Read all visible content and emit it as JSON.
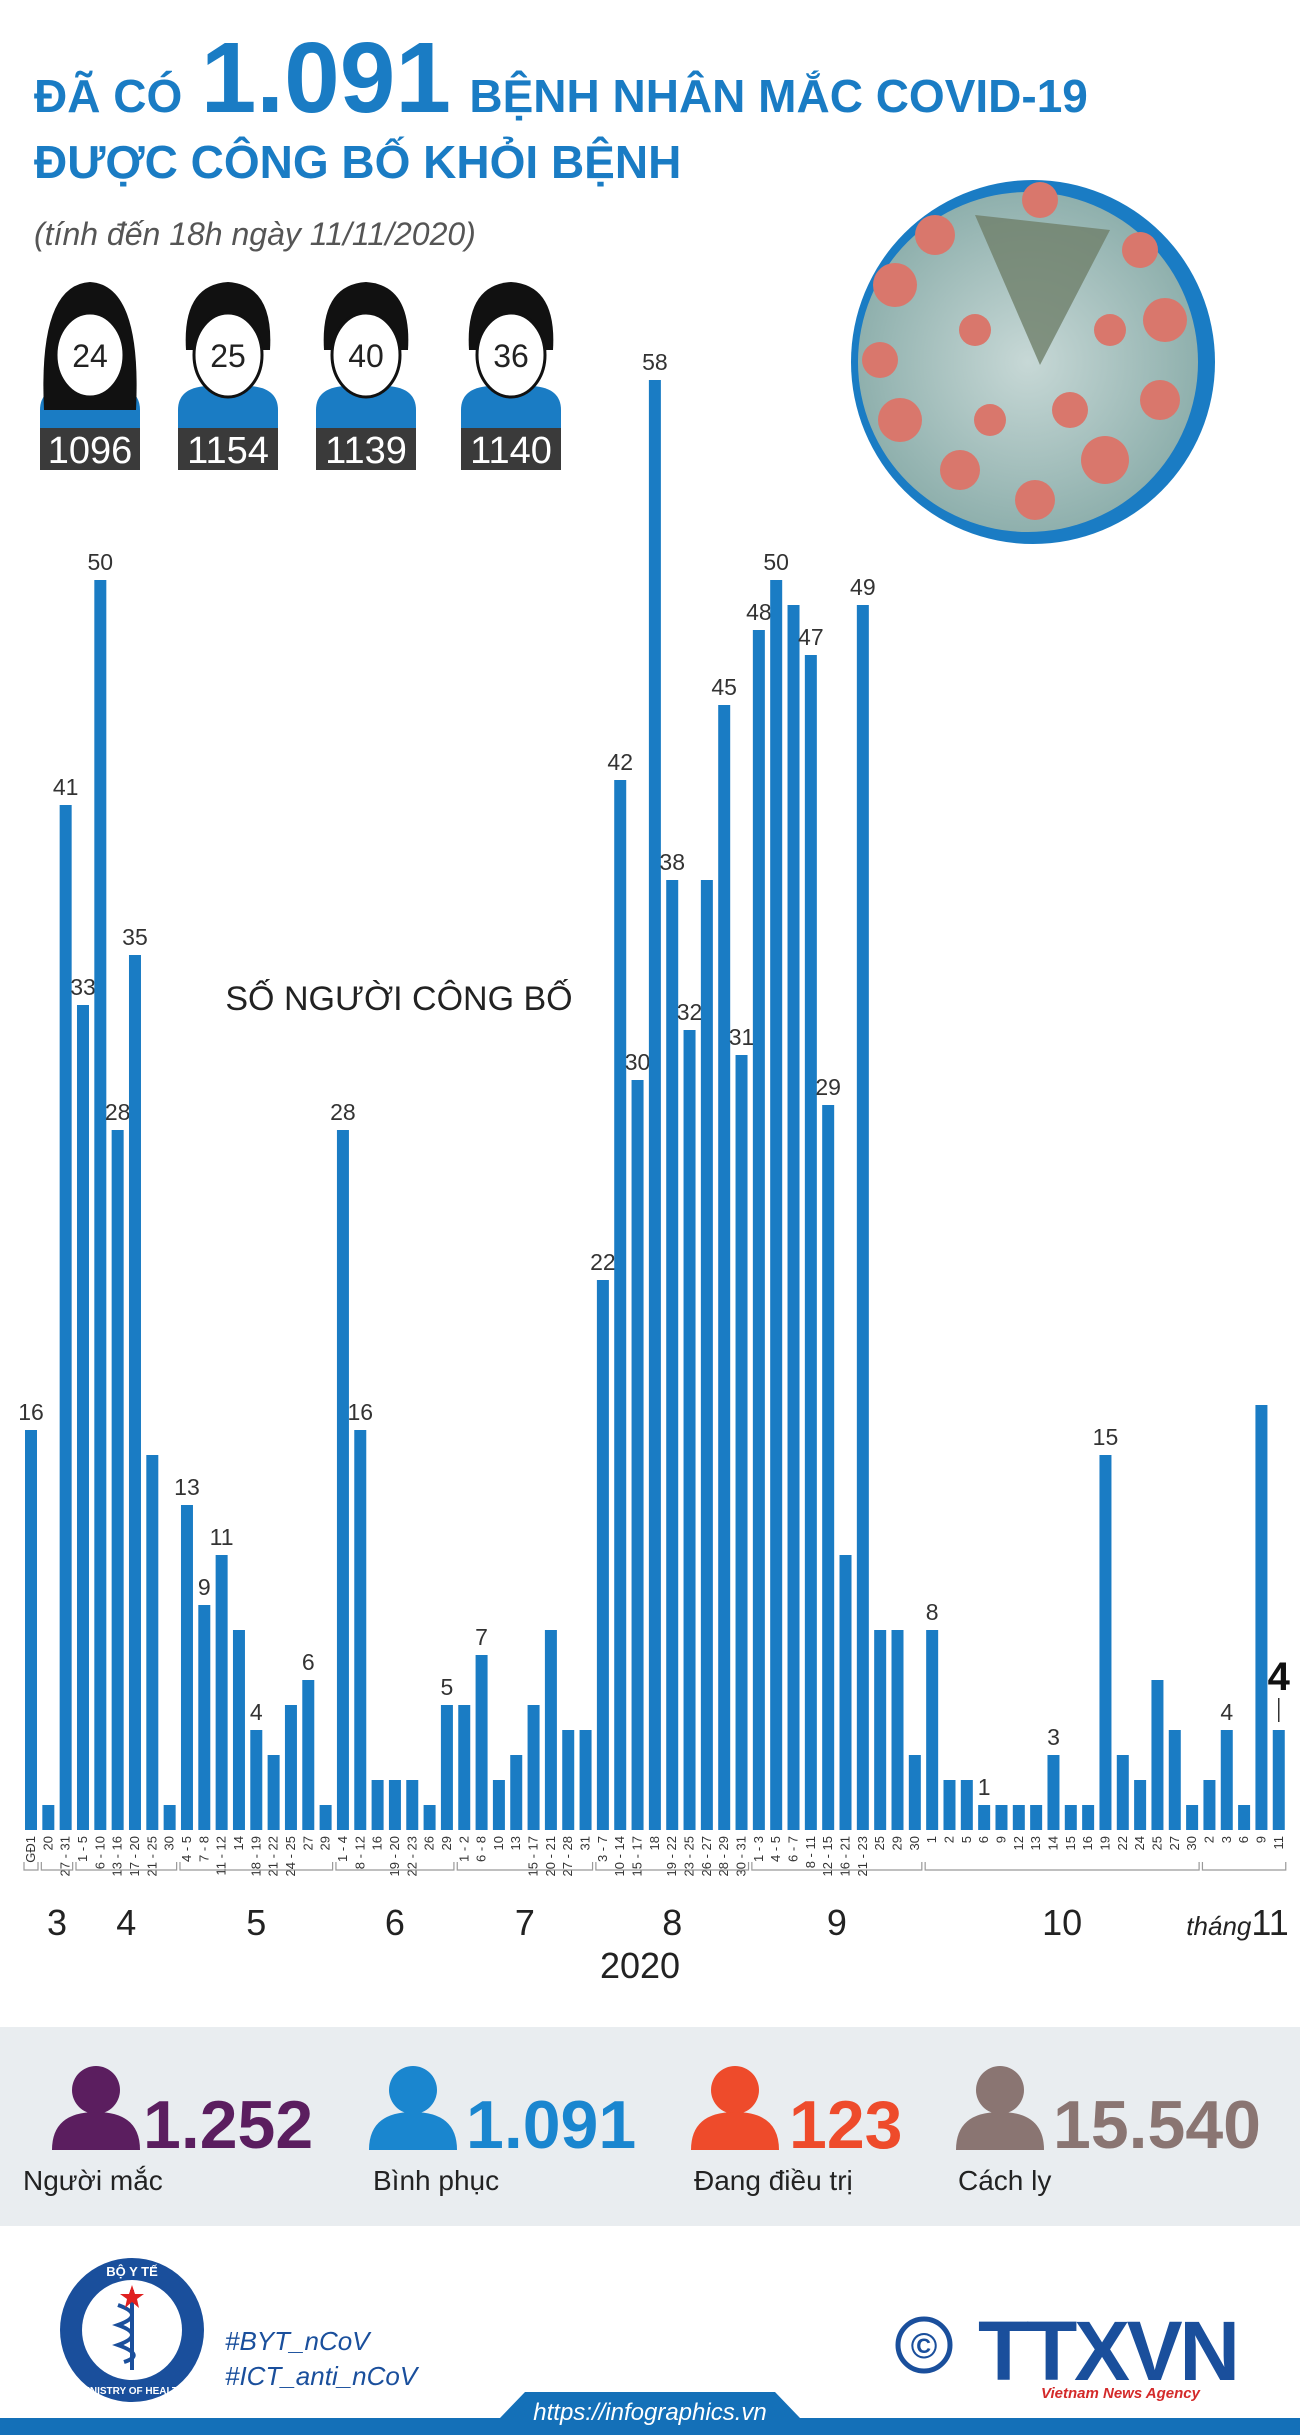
{
  "header": {
    "title_prefix": "ĐÃ CÓ",
    "title_number": "1.091",
    "title_suffix": "BỆNH NHÂN MẮC COVID-19",
    "title_line2": "ĐƯỢC CÔNG BỐ KHỎI BỆNH",
    "subtitle": "(tính đến 18h ngày 11/11/2020)"
  },
  "patients": [
    {
      "age": 24,
      "id": 1096,
      "gender": "female"
    },
    {
      "age": 25,
      "id": 1154,
      "gender": "male"
    },
    {
      "age": 40,
      "id": 1139,
      "gender": "male"
    },
    {
      "age": 36,
      "id": 1140,
      "gender": "male"
    }
  ],
  "chart_data": {
    "type": "bar",
    "title": "SỐ NGƯỜI CÔNG BỐ",
    "xlabel": "2020",
    "month_prefix": "tháng",
    "color": "#1a7cc4",
    "groups": [
      {
        "label": null,
        "categories": [
          "GĐ1"
        ],
        "values": [
          16
        ],
        "labeled": [
          true
        ]
      },
      {
        "label": "3",
        "categories": [
          "20",
          "27 - 31"
        ],
        "values": [
          1,
          41
        ],
        "labeled": [
          false,
          true
        ]
      },
      {
        "label": "4",
        "categories": [
          "1 - 5",
          "6 - 10",
          "13 - 16",
          "17 - 20",
          "21 - 25",
          "30"
        ],
        "values": [
          33,
          50,
          28,
          35,
          15,
          1
        ],
        "labeled": [
          true,
          true,
          true,
          true,
          false,
          false
        ]
      },
      {
        "label": "5",
        "categories": [
          "4 - 5",
          "7 - 8",
          "11 - 12",
          "14",
          "18 - 19",
          "21 - 22",
          "24 - 25",
          "27",
          "29"
        ],
        "values": [
          13,
          9,
          11,
          8,
          4,
          3,
          5,
          6,
          1
        ],
        "labeled": [
          true,
          true,
          true,
          false,
          true,
          false,
          false,
          true,
          false
        ]
      },
      {
        "label": "6",
        "categories": [
          "1 - 4",
          "8 - 12",
          "16",
          "19 - 20",
          "22 - 23",
          "26",
          "29"
        ],
        "values": [
          28,
          16,
          2,
          2,
          2,
          1,
          5
        ],
        "labeled": [
          true,
          true,
          false,
          false,
          false,
          false,
          true
        ]
      },
      {
        "label": "7",
        "categories": [
          "1 - 2",
          "6 - 8",
          "10",
          "13",
          "15 - 17",
          "20 - 21",
          "27 - 28",
          "31"
        ],
        "values": [
          5,
          7,
          2,
          3,
          5,
          8,
          4,
          4
        ],
        "labeled": [
          false,
          true,
          false,
          false,
          false,
          false,
          false,
          false
        ]
      },
      {
        "label": "8",
        "categories": [
          "3 - 7",
          "10 - 14",
          "15 - 17",
          "18",
          "19 - 22",
          "23 - 25",
          "26 - 27",
          "28 - 29",
          "30 - 31"
        ],
        "values": [
          22,
          42,
          30,
          58,
          38,
          32,
          38,
          45,
          31
        ],
        "labeled": [
          true,
          true,
          true,
          true,
          true,
          true,
          false,
          true,
          true
        ]
      },
      {
        "label": "9",
        "categories": [
          "1 - 3",
          "4 - 5",
          "6 - 7",
          "8 - 11",
          "12 - 15",
          "16 - 21",
          "21 - 23",
          "25",
          "29",
          "30"
        ],
        "values": [
          48,
          50,
          49,
          47,
          29,
          11,
          49,
          8,
          8,
          3
        ],
        "labeled": [
          true,
          true,
          false,
          true,
          true,
          false,
          true,
          false,
          false,
          false
        ]
      },
      {
        "label": "10",
        "categories": [
          "1",
          "2",
          "5",
          "6",
          "9",
          "12",
          "13",
          "14",
          "15",
          "16",
          "19",
          "22",
          "24",
          "25",
          "27",
          "30"
        ],
        "values": [
          8,
          2,
          2,
          1,
          1,
          1,
          1,
          3,
          1,
          1,
          15,
          3,
          2,
          6,
          4,
          1
        ],
        "labeled": [
          true,
          false,
          false,
          true,
          false,
          false,
          false,
          true,
          false,
          false,
          true,
          false,
          false,
          false,
          false,
          false
        ]
      },
      {
        "label": "11",
        "categories": [
          "2",
          "3",
          "6",
          "9",
          "11"
        ],
        "values": [
          2,
          4,
          1,
          17,
          4
        ],
        "labeled": [
          false,
          true,
          false,
          false,
          true
        ]
      }
    ]
  },
  "stats": [
    {
      "value": "1.252",
      "label": "Người mắc",
      "color": "#5b1e5f"
    },
    {
      "value": "1.091",
      "label": "Bình phục",
      "color": "#1a86cf"
    },
    {
      "value": "123",
      "label": "Đang điều trị",
      "color": "#ee4b2b"
    },
    {
      "value": "15.540",
      "label": "Cách ly",
      "color": "#8a7572"
    }
  ],
  "footer": {
    "logo_top": "BỘ Y TẾ",
    "logo_bottom": "MINISTRY OF HEALTH",
    "hashtags": [
      "#BYT_nCoV",
      "#ICT_anti_nCoV"
    ],
    "copyright": "©",
    "agency": "TTXVN",
    "agency_sub": "Vietnam News Agency",
    "url": "https://infographics.vn"
  }
}
